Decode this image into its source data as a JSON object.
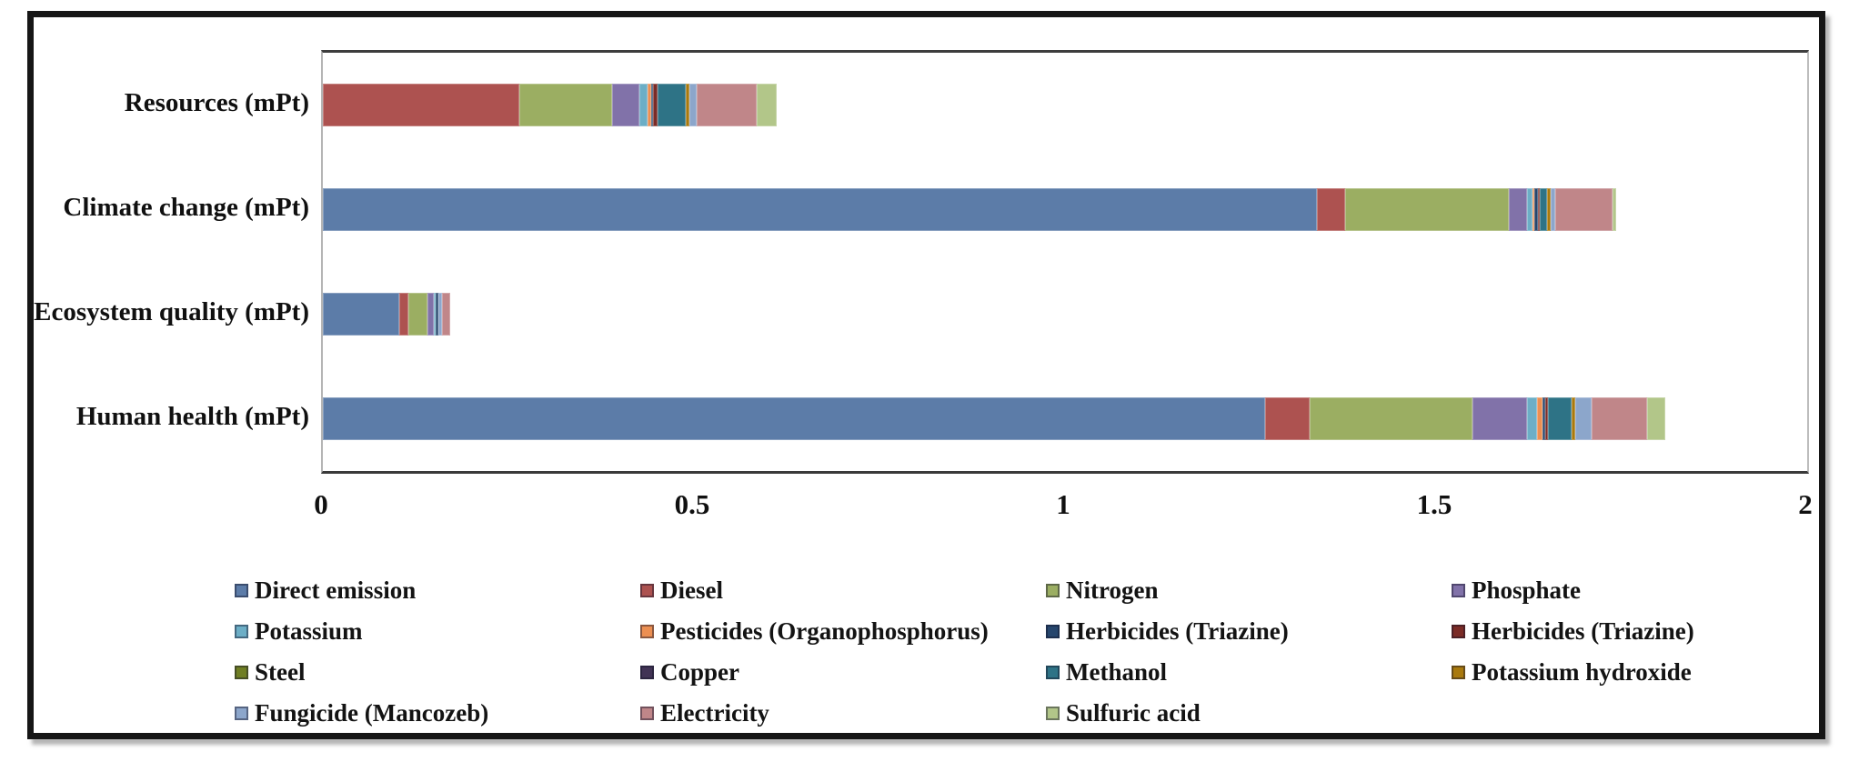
{
  "chart_data": {
    "type": "bar",
    "orientation": "horizontal",
    "stacked": true,
    "title": "",
    "xlabel": "",
    "ylabel": "",
    "xlim": [
      0,
      2
    ],
    "x_ticks": [
      "0",
      "0.5",
      "1",
      "1.5",
      "2"
    ],
    "grid": false,
    "legend_position": "bottom",
    "legend_columns": 4,
    "categories": [
      "Resources (mPt)",
      "Climate change (mPt)",
      "Ecosystem quality (mPt)",
      "Human health (mPt)"
    ],
    "series": [
      {
        "name": "Direct emission",
        "color": "#5C7CA8",
        "values": [
          0,
          1.34,
          0.103,
          1.27
        ]
      },
      {
        "name": "Diesel",
        "color": "#AD5250",
        "values": [
          0.265,
          0.038,
          0.012,
          0.06
        ]
      },
      {
        "name": "Nitrogen",
        "color": "#9BAE62",
        "values": [
          0.125,
          0.22,
          0.026,
          0.219
        ]
      },
      {
        "name": "Phosphate",
        "color": "#8172A9",
        "values": [
          0.036,
          0.025,
          0.008,
          0.073
        ]
      },
      {
        "name": "Potassium",
        "color": "#6CAEC6",
        "values": [
          0.012,
          0.007,
          0.003,
          0.014
        ]
      },
      {
        "name": "Pesticides (Organophosphorus)",
        "color": "#EC8F52",
        "values": [
          0.004,
          0.002,
          0,
          0.007
        ]
      },
      {
        "name": "Herbicides (Triazine)",
        "color": "#26466D",
        "values": [
          0.003,
          0.005,
          0.004,
          0.004
        ]
      },
      {
        "name": "Herbicides (Triazine)",
        "color": "#7B2B26",
        "values": [
          0.006,
          0.003,
          0,
          0.004
        ]
      },
      {
        "name": "Steel",
        "color": "#6F7E23",
        "values": [
          0,
          0,
          0,
          0
        ]
      },
      {
        "name": "Copper",
        "color": "#413355",
        "values": [
          0,
          0,
          0,
          0
        ]
      },
      {
        "name": "Methanol",
        "color": "#2E7386",
        "values": [
          0.038,
          0.01,
          0,
          0.032
        ]
      },
      {
        "name": "Potassium hydroxide",
        "color": "#A9790D",
        "values": [
          0.005,
          0.004,
          0,
          0.005
        ]
      },
      {
        "name": "Fungicide (Mancozeb)",
        "color": "#8CA6CB",
        "values": [
          0.01,
          0.006,
          0.004,
          0.022
        ]
      },
      {
        "name": "Electricity",
        "color": "#C08689",
        "values": [
          0.08,
          0.078,
          0.011,
          0.074
        ]
      },
      {
        "name": "Sulfuric acid",
        "color": "#B2C689",
        "values": [
          0.027,
          0.005,
          0,
          0.025
        ]
      }
    ]
  },
  "layout_text": {
    "note": ""
  }
}
